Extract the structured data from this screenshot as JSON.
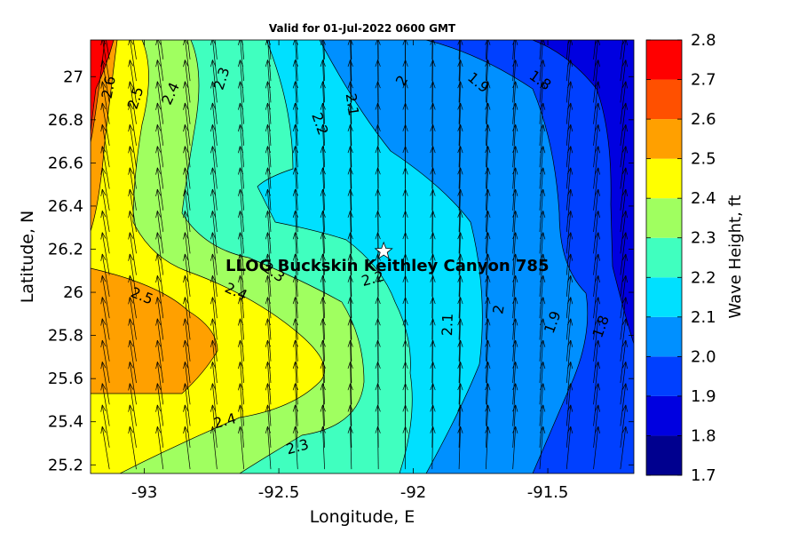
{
  "chart_data": {
    "type": "heatmap",
    "subtype": "filled-contour map with wind/wave direction arrows",
    "title": "Valid for 01-Jul-2022 0600 GMT",
    "xlabel": "Longitude, E",
    "ylabel": "Latitude, N",
    "colorbar_label": "Wave Height, ft",
    "xlim": [
      -93.2,
      -91.18
    ],
    "ylim": [
      25.16,
      27.17
    ],
    "x_ticks": [
      -93,
      -92.5,
      -92,
      -91.5
    ],
    "x_tick_labels": [
      "-93",
      "-92.5",
      "-92",
      "-91.5"
    ],
    "y_ticks": [
      25.2,
      25.4,
      25.6,
      25.8,
      26,
      26.2,
      26.4,
      26.6,
      26.8,
      27
    ],
    "y_tick_labels": [
      "25.2",
      "25.4",
      "25.6",
      "25.8",
      "26",
      "26.2",
      "26.4",
      "26.6",
      "26.8",
      "27"
    ],
    "colorbar": {
      "levels": [
        1.7,
        1.8,
        1.9,
        2.0,
        2.1,
        2.2,
        2.3,
        2.4,
        2.5,
        2.6,
        2.7,
        2.8
      ],
      "tick_labels": [
        "1.7",
        "1.8",
        "1.9",
        "2.0",
        "2.1",
        "2.2",
        "2.3",
        "2.4",
        "2.5",
        "2.6",
        "2.7",
        "2.8"
      ],
      "colors": [
        "#00008f",
        "#0000e0",
        "#0040ff",
        "#0090ff",
        "#00e0ff",
        "#40ffbf",
        "#a0ff60",
        "#ffff00",
        "#ffa000",
        "#ff5000",
        "#ff0000"
      ]
    },
    "contour_labels": [
      {
        "text": "2.6",
        "x": -93.13,
        "y": 26.95,
        "angle": -80
      },
      {
        "text": "2.5",
        "x": -93.03,
        "y": 26.9,
        "angle": -72
      },
      {
        "text": "2.4",
        "x": -92.9,
        "y": 26.92,
        "angle": -65
      },
      {
        "text": "2.3",
        "x": -92.71,
        "y": 26.99,
        "angle": -72
      },
      {
        "text": "2.2",
        "x": -92.35,
        "y": 26.78,
        "angle": 70
      },
      {
        "text": "2.1",
        "x": -92.23,
        "y": 26.87,
        "angle": 82
      },
      {
        "text": "2",
        "x": -92.04,
        "y": 26.98,
        "angle": -60
      },
      {
        "text": "1.9",
        "x": -91.76,
        "y": 26.97,
        "angle": 40
      },
      {
        "text": "1.8",
        "x": -91.53,
        "y": 26.98,
        "angle": 35
      },
      {
        "text": "2.5",
        "x": -93.01,
        "y": 25.98,
        "angle": 22
      },
      {
        "text": "2.4",
        "x": -92.66,
        "y": 26.0,
        "angle": 25
      },
      {
        "text": "2.3",
        "x": -92.52,
        "y": 26.09,
        "angle": 35
      },
      {
        "text": "2.2",
        "x": -92.15,
        "y": 26.06,
        "angle": -15
      },
      {
        "text": "2.1",
        "x": -91.87,
        "y": 25.85,
        "angle": -88
      },
      {
        "text": "2",
        "x": -91.68,
        "y": 25.92,
        "angle": -80
      },
      {
        "text": "1.9",
        "x": -91.48,
        "y": 25.86,
        "angle": -70
      },
      {
        "text": "1.8",
        "x": -91.3,
        "y": 25.84,
        "angle": -70
      },
      {
        "text": "2.4",
        "x": -92.7,
        "y": 25.4,
        "angle": -15
      },
      {
        "text": "2.3",
        "x": -92.43,
        "y": 25.28,
        "angle": -15
      }
    ],
    "site": {
      "label": "LLOG Buckskin Keithley Canyon 785",
      "lon": -92.11,
      "lat": 26.19
    },
    "arrows": {
      "lon_start": -93.13,
      "lon_step": 0.1,
      "lat_start": 25.18,
      "lat_step": 0.1,
      "cols": 20,
      "rows": 20,
      "direction": "northward, turning slightly north-north-east toward the east"
    }
  }
}
